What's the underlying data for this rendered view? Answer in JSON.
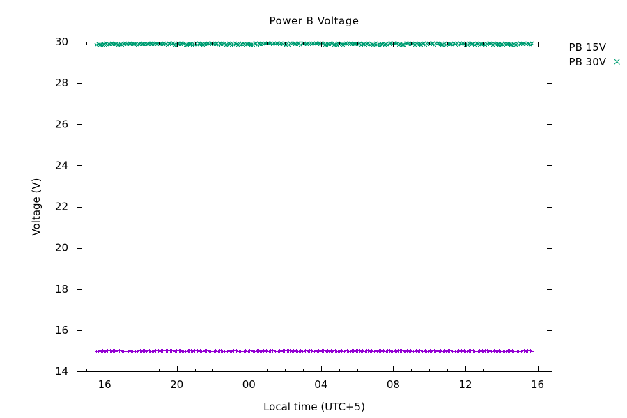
{
  "chart_data": {
    "type": "scatter",
    "title": "Power B Voltage",
    "xlabel": "Local time (UTC+5)",
    "ylabel": "Voltage (V)",
    "grid": false,
    "legend_position": "outside-top-right",
    "x_axis": {
      "kind": "time-of-day-hours",
      "min_hour": 14.45,
      "max_hour": 40.79,
      "minor_tick_every_hours": 1,
      "first_minor_hour": 15,
      "major_ticks": [
        {
          "hour": 16,
          "label": "16"
        },
        {
          "hour": 20,
          "label": "20"
        },
        {
          "hour": 24,
          "label": "00"
        },
        {
          "hour": 28,
          "label": "04"
        },
        {
          "hour": 32,
          "label": "08"
        },
        {
          "hour": 36,
          "label": "12"
        },
        {
          "hour": 40,
          "label": "16"
        }
      ]
    },
    "y_axis": {
      "min": 14,
      "max": 30,
      "ticks": [
        14,
        16,
        18,
        20,
        22,
        24,
        26,
        28,
        30
      ],
      "tick_labels": [
        "14",
        "16",
        "18",
        "20",
        "22",
        "24",
        "26",
        "28",
        "30"
      ]
    },
    "series": [
      {
        "name": "PB 15V",
        "marker": "plus",
        "color": "#9400D3",
        "start_hour": 15.55,
        "end_hour": 39.68,
        "sample_interval_minutes": 5,
        "nominal_value": 15.0,
        "noise_amplitude": 0.03
      },
      {
        "name": "PB 30V",
        "marker": "cross",
        "color": "#009E73",
        "start_hour": 15.55,
        "end_hour": 39.68,
        "sample_interval_minutes": 5,
        "nominal_value": 29.9,
        "noise_amplitude": 0.04
      }
    ]
  }
}
